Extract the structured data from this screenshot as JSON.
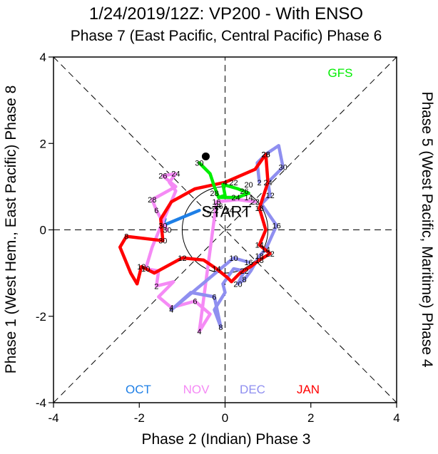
{
  "chart_data": {
    "type": "line",
    "title": "1/24/2019/12Z: VP200 - With ENSO",
    "subtitle": "Phase 7 (East Pacific, Central Pacific) Phase 6",
    "xlabel": "Phase 2 (Indian) Phase 3",
    "ylabel_left": "Phase 1 (West Hem., East Pacific) Phase 8",
    "ylabel_right": "Phase 5 (West Pacific, Maritime) Phase 4",
    "xlim": [
      -4,
      4
    ],
    "ylim": [
      -4,
      4
    ],
    "xticks": [
      "-4",
      "-2",
      "0",
      "2",
      "4"
    ],
    "yticks": [
      "-4",
      "-2",
      "0",
      "2",
      "4"
    ],
    "unit_circle_radius": 1,
    "start_label": "START",
    "grid": false,
    "series": [
      {
        "name": "OCT",
        "color": "#1e7fe6",
        "points": [
          {
            "x": -1.4,
            "y": 0.25,
            "label": ""
          },
          {
            "x": -1.45,
            "y": 0.1,
            "label": "30"
          },
          {
            "x": -0.6,
            "y": 0.45,
            "label": ""
          }
        ]
      },
      {
        "name": "NOV",
        "color": "#f58af5",
        "points": [
          {
            "x": -1.35,
            "y": 0.0,
            "label": "30"
          },
          {
            "x": -1.6,
            "y": 0.45,
            "label": "6"
          },
          {
            "x": -1.7,
            "y": 0.7,
            "label": "28"
          },
          {
            "x": -1.15,
            "y": 1.0,
            "label": ""
          },
          {
            "x": -1.45,
            "y": 1.25,
            "label": "26"
          },
          {
            "x": -1.15,
            "y": 1.3,
            "label": "24"
          },
          {
            "x": -1.3,
            "y": 1.1,
            "label": ""
          },
          {
            "x": -1.15,
            "y": 0.9,
            "label": ""
          },
          {
            "x": -1.7,
            "y": -0.4,
            "label": ""
          },
          {
            "x": -1.85,
            "y": -0.9,
            "label": "10"
          },
          {
            "x": -1.55,
            "y": -0.95,
            "label": ""
          },
          {
            "x": -1.6,
            "y": -1.3,
            "label": "2"
          },
          {
            "x": -1.2,
            "y": -1.2,
            "label": ""
          },
          {
            "x": -1.55,
            "y": -1.55,
            "label": ""
          },
          {
            "x": -1.25,
            "y": -1.8,
            "label": "4"
          },
          {
            "x": -0.7,
            "y": -1.65,
            "label": "6"
          },
          {
            "x": -0.35,
            "y": -1.95,
            "label": ""
          },
          {
            "x": -0.6,
            "y": -2.35,
            "label": "4"
          },
          {
            "x": -0.2,
            "y": 0.65,
            "label": "16"
          },
          {
            "x": 0.3,
            "y": 0.7,
            "label": ""
          },
          {
            "x": 0.7,
            "y": 0.65,
            "label": "22"
          }
        ]
      },
      {
        "name": "DEC",
        "color": "#8f8ff0",
        "points": [
          {
            "x": 0.8,
            "y": 1.1,
            "label": "2"
          },
          {
            "x": 0.75,
            "y": 1.55,
            "label": ""
          },
          {
            "x": 0.95,
            "y": 1.75,
            "label": "26"
          },
          {
            "x": 1.25,
            "y": 1.95,
            "label": ""
          },
          {
            "x": 1.35,
            "y": 1.45,
            "label": "30"
          },
          {
            "x": 1.0,
            "y": 1.1,
            "label": ""
          },
          {
            "x": 1.05,
            "y": 0.8,
            "label": "12"
          },
          {
            "x": 0.85,
            "y": 0.6,
            "label": ""
          },
          {
            "x": 1.2,
            "y": 0.1,
            "label": "16"
          },
          {
            "x": 0.95,
            "y": -0.45,
            "label": "14"
          },
          {
            "x": 0.8,
            "y": -0.6,
            "label": "18"
          },
          {
            "x": 0.6,
            "y": -0.95,
            "label": ""
          },
          {
            "x": 0.45,
            "y": -1.15,
            "label": "8"
          },
          {
            "x": 0.3,
            "y": -1.25,
            "label": "20"
          },
          {
            "x": 0.45,
            "y": -0.95,
            "label": "22"
          },
          {
            "x": 0.2,
            "y": -0.9,
            "label": ""
          },
          {
            "x": -0.05,
            "y": -1.25,
            "label": ""
          },
          {
            "x": 0.0,
            "y": -1.45,
            "label": ""
          },
          {
            "x": -0.25,
            "y": -1.85,
            "label": ""
          },
          {
            "x": -0.1,
            "y": -2.25,
            "label": "8"
          },
          {
            "x": -0.25,
            "y": -1.55,
            "label": "6"
          },
          {
            "x": -0.8,
            "y": -1.45,
            "label": ""
          },
          {
            "x": -1.25,
            "y": -1.85,
            "label": "4"
          },
          {
            "x": 0.2,
            "y": -0.65,
            "label": "10"
          },
          {
            "x": 0.55,
            "y": -0.75,
            "label": "16"
          }
        ]
      },
      {
        "name": "JAN",
        "color": "#ff0000",
        "points": [
          {
            "x": -1.45,
            "y": -0.25,
            "label": "30"
          },
          {
            "x": -2.3,
            "y": -0.15,
            "label": "8"
          },
          {
            "x": -2.45,
            "y": -0.4,
            "label": ""
          },
          {
            "x": -2.2,
            "y": -1.0,
            "label": ""
          },
          {
            "x": -2.05,
            "y": -1.25,
            "label": ""
          },
          {
            "x": -1.95,
            "y": -0.85,
            "label": "10"
          },
          {
            "x": -1.65,
            "y": -1.0,
            "label": ""
          },
          {
            "x": -1.0,
            "y": -0.65,
            "label": "12"
          },
          {
            "x": -0.5,
            "y": -0.7,
            "label": ""
          },
          {
            "x": -0.2,
            "y": -0.9,
            "label": "14"
          },
          {
            "x": 0.05,
            "y": -1.1,
            "label": ""
          },
          {
            "x": 0.15,
            "y": -1.2,
            "label": ""
          },
          {
            "x": 0.35,
            "y": -1.0,
            "label": ""
          },
          {
            "x": 0.6,
            "y": -0.85,
            "label": ""
          },
          {
            "x": 0.8,
            "y": -0.7,
            "label": "18"
          },
          {
            "x": 1.05,
            "y": -0.55,
            "label": "22"
          },
          {
            "x": 0.8,
            "y": -0.35,
            "label": "14"
          },
          {
            "x": 0.95,
            "y": 0.0,
            "label": ""
          },
          {
            "x": 0.8,
            "y": 0.5,
            "label": "18"
          },
          {
            "x": 0.9,
            "y": 0.8,
            "label": ""
          },
          {
            "x": 1.0,
            "y": 1.1,
            "label": "24"
          },
          {
            "x": 0.95,
            "y": 1.75,
            "label": "28"
          },
          {
            "x": 0.7,
            "y": 1.4,
            "label": ""
          },
          {
            "x": 0.0,
            "y": 1.1,
            "label": "4"
          },
          {
            "x": -0.7,
            "y": 0.95,
            "label": ""
          },
          {
            "x": -1.25,
            "y": 0.65,
            "label": ""
          },
          {
            "x": -1.5,
            "y": 0.25,
            "label": ""
          },
          {
            "x": -1.45,
            "y": -0.25,
            "label": ""
          }
        ]
      },
      {
        "name": "GFS",
        "color": "#00ee00",
        "points": [
          {
            "x": -0.6,
            "y": 1.55,
            "label": "30"
          },
          {
            "x": -0.35,
            "y": 1.3,
            "label": ""
          },
          {
            "x": -0.25,
            "y": 1.0,
            "label": ""
          },
          {
            "x": -0.15,
            "y": 0.75,
            "label": ""
          },
          {
            "x": 0.0,
            "y": 0.8,
            "label": ""
          },
          {
            "x": -0.05,
            "y": 1.05,
            "label": ""
          },
          {
            "x": 0.3,
            "y": 0.95,
            "label": ""
          },
          {
            "x": 0.55,
            "y": 0.85,
            "label": ""
          },
          {
            "x": 0.3,
            "y": 0.75,
            "label": ""
          },
          {
            "x": -0.1,
            "y": 0.75,
            "label": ""
          }
        ]
      }
    ],
    "extra_labels": [
      {
        "x": 0.2,
        "y": 1.1,
        "text": "22"
      },
      {
        "x": 0.55,
        "y": 1.05,
        "text": "20"
      },
      {
        "x": 0.45,
        "y": 0.9,
        "text": "26"
      },
      {
        "x": 0.25,
        "y": 0.75,
        "text": "24"
      },
      {
        "x": 0.55,
        "y": 0.75,
        "text": "14"
      },
      {
        "x": -0.25,
        "y": 0.85,
        "text": "28"
      },
      {
        "x": -0.15,
        "y": 0.55,
        "text": "26"
      },
      {
        "x": 0.1,
        "y": 0.45,
        "text": "24"
      },
      {
        "x": -0.25,
        "y": 0.45,
        "text": "22"
      }
    ],
    "current_point": {
      "x": -0.45,
      "y": 1.7
    },
    "legend": [
      {
        "text": "OCT",
        "color": "#1e7fe6"
      },
      {
        "text": "NOV",
        "color": "#f58af5"
      },
      {
        "text": "DEC",
        "color": "#8f8ff0"
      },
      {
        "text": "JAN",
        "color": "#ff0000"
      }
    ],
    "model_label": {
      "text": "GFS",
      "color": "#00ee00"
    }
  }
}
